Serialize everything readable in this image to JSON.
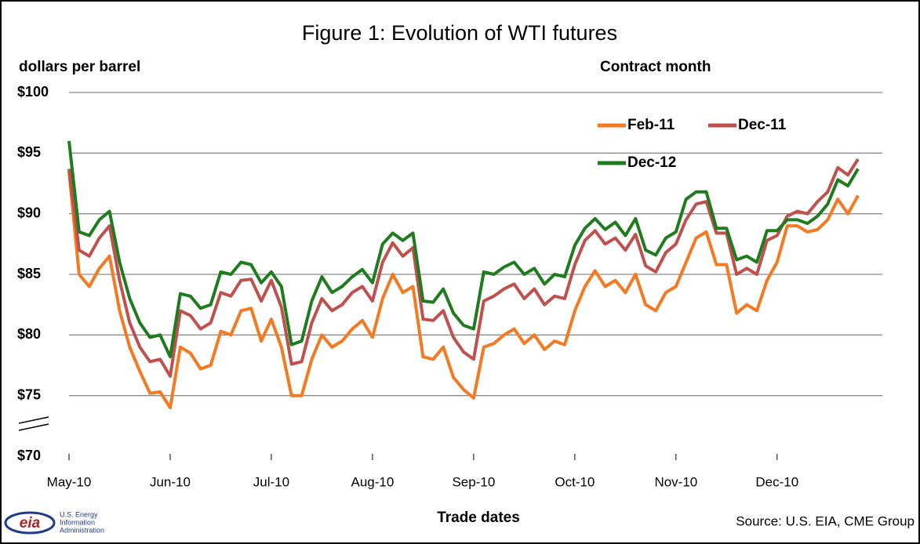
{
  "chart_data": {
    "type": "line",
    "title": "Figure 1: Evolution of WTI futures",
    "ylabel": "dollars per barrel",
    "xlabel": "Trade dates",
    "legend_title": "Contract month",
    "source": "Source: U.S. EIA, CME Group",
    "logo": [
      "eia",
      "U.S. Energy",
      "Information",
      "Administration"
    ],
    "categories": [
      "May-10",
      null,
      null,
      null,
      null,
      null,
      null,
      null,
      null,
      null,
      "Jun-10",
      null,
      null,
      null,
      null,
      null,
      null,
      null,
      null,
      null,
      "Jul-10",
      null,
      null,
      null,
      null,
      null,
      null,
      null,
      null,
      null,
      "Aug-10",
      null,
      null,
      null,
      null,
      null,
      null,
      null,
      null,
      null,
      "Sep-10",
      null,
      null,
      null,
      null,
      null,
      null,
      null,
      null,
      null,
      "Oct-10",
      null,
      null,
      null,
      null,
      null,
      null,
      null,
      null,
      null,
      "Nov-10",
      null,
      null,
      null,
      null,
      null,
      null,
      null,
      null,
      null,
      "Dec-10",
      null,
      null,
      null,
      null,
      null,
      null,
      null,
      null
    ],
    "series": [
      {
        "name": "Feb-11",
        "color": "#f47920",
        "values": [
          93.5,
          85,
          84,
          85.5,
          86.5,
          82,
          79,
          77,
          75.2,
          75.3,
          74,
          79,
          78.5,
          77.2,
          77.5,
          80.3,
          80,
          82,
          82.2,
          79.5,
          81.3,
          79,
          75,
          75,
          78,
          80,
          79,
          79.5,
          80.5,
          81.2,
          79.8,
          83,
          85,
          83.5,
          84,
          78.2,
          78,
          79,
          76.5,
          75.5,
          74.8,
          79,
          79.3,
          80,
          80.5,
          79.3,
          80,
          78.8,
          79.5,
          79.2,
          82,
          84,
          85.3,
          84,
          84.5,
          83.5,
          85,
          82.5,
          82,
          83.5,
          84,
          86,
          88,
          88.5,
          85.8,
          85.8,
          81.8,
          82.5,
          82,
          84.5,
          86,
          89,
          89,
          88.5,
          88.7,
          89.5,
          91.2,
          90,
          91.5
        ]
      },
      {
        "name": "Dec-11",
        "color": "#c0504d",
        "values": [
          93.7,
          87,
          86.5,
          88,
          89,
          84.5,
          81,
          79,
          77.8,
          78,
          76.6,
          82,
          81.6,
          80.5,
          81,
          83.5,
          83.2,
          84.5,
          84.6,
          82.8,
          84.5,
          82.3,
          77.6,
          77.8,
          81,
          83,
          82,
          82.5,
          83.5,
          84,
          82.8,
          86,
          87.6,
          86.5,
          87.2,
          81.3,
          81.2,
          82,
          79.8,
          78.6,
          78,
          82.8,
          83.2,
          83.8,
          84.2,
          83,
          83.8,
          82.5,
          83.2,
          83,
          85.8,
          87.8,
          88.6,
          87.5,
          88,
          87,
          88.3,
          85.7,
          85.2,
          86.8,
          87.5,
          89.5,
          90.8,
          91,
          88.4,
          88.4,
          85,
          85.5,
          85,
          87.8,
          88.2,
          89.8,
          90.2,
          90,
          91,
          91.8,
          93.8,
          93.2,
          94.5
        ]
      },
      {
        "name": "Dec-12",
        "color": "#1e7b1e",
        "values": [
          96,
          88.5,
          88.2,
          89.5,
          90.2,
          86,
          83,
          81,
          79.8,
          80,
          78.2,
          83.4,
          83.2,
          82.2,
          82.5,
          85.2,
          85,
          86,
          85.8,
          84.3,
          85.2,
          84,
          79.2,
          79.5,
          82.8,
          84.8,
          83.5,
          84,
          84.8,
          85.4,
          84.3,
          87.5,
          88.4,
          87.8,
          88.4,
          82.8,
          82.7,
          83.8,
          81.8,
          80.8,
          80.5,
          85.2,
          85,
          85.6,
          86,
          85,
          85.5,
          84.2,
          85,
          84.8,
          87.4,
          88.8,
          89.6,
          88.7,
          89.3,
          88.2,
          89.6,
          87,
          86.6,
          88,
          88.5,
          91.2,
          91.8,
          91.8,
          88.8,
          88.8,
          86.2,
          86.5,
          86,
          88.6,
          88.6,
          89.5,
          89.5,
          89.2,
          89.8,
          90.8,
          92.8,
          92.3,
          93.7
        ]
      }
    ],
    "ylim": [
      70,
      100
    ],
    "yticks": [
      {
        "value": 70,
        "label": "$70"
      },
      {
        "value": 75,
        "label": "$75"
      },
      {
        "value": 80,
        "label": "$80"
      },
      {
        "value": 85,
        "label": "$85"
      },
      {
        "value": 90,
        "label": "$90"
      },
      {
        "value": 95,
        "label": "$95"
      },
      {
        "value": 100,
        "label": "$100"
      }
    ],
    "grid": true
  }
}
